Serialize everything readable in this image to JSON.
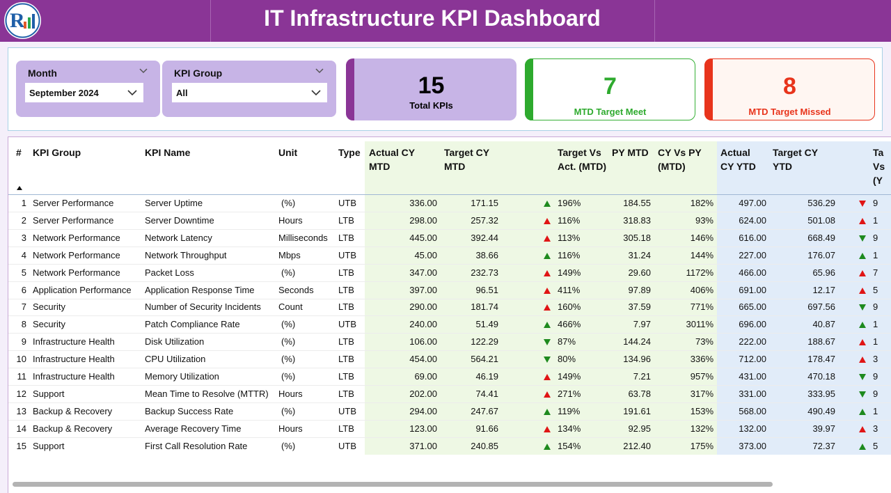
{
  "header": {
    "title": "IT Infrastructure KPI Dashboard",
    "logo_icon": "company-logo-icon"
  },
  "filters": {
    "month": {
      "label": "Month",
      "value": "September 2024"
    },
    "kpi_group": {
      "label": "KPI Group",
      "value": "All"
    }
  },
  "cards": {
    "total": {
      "value": "15",
      "label": "Total KPIs",
      "color": "#8a3596"
    },
    "meet": {
      "value": "7",
      "label": "MTD Target Meet",
      "color": "#2eaa2e"
    },
    "missed": {
      "value": "8",
      "label": "MTD Target Missed",
      "color": "#e8341c"
    }
  },
  "table": {
    "columns": {
      "num": "#",
      "group": "KPI Group",
      "name": "KPI Name",
      "unit": "Unit",
      "type": "Type",
      "actual_mtd": "Actual CY MTD",
      "target_mtd": "Target CY MTD",
      "tva_mtd": "Target Vs Act. (MTD)",
      "py_mtd": "PY MTD",
      "cyvspy_mtd": "CY Vs PY (MTD)",
      "actual_ytd": "Actual CY YTD",
      "target_ytd": "Target CY YTD",
      "tva_ytd": "Ta Vs (Y"
    },
    "rows": [
      {
        "n": "1",
        "group": "Server Performance",
        "name": "Server Uptime",
        "unit": "(%)",
        "type": "UTB",
        "amtd": "336.00",
        "tmtd": "171.15",
        "dir": "up",
        "tva": "196%",
        "py": "184.55",
        "cvp": "182%",
        "aytd": "497.00",
        "tytd": "536.29",
        "ydir": "down",
        "ytva": "9"
      },
      {
        "n": "2",
        "group": "Server Performance",
        "name": "Server Downtime",
        "unit": "Hours",
        "type": "LTB",
        "amtd": "298.00",
        "tmtd": "257.32",
        "dir": "up",
        "tva": "116%",
        "py": "318.83",
        "cvp": "93%",
        "aytd": "624.00",
        "tytd": "501.08",
        "ydir": "up",
        "ytva": "1"
      },
      {
        "n": "3",
        "group": "Network Performance",
        "name": "Network Latency",
        "unit": "Milliseconds",
        "type": "LTB",
        "amtd": "445.00",
        "tmtd": "392.44",
        "dir": "up",
        "tva": "113%",
        "py": "305.18",
        "cvp": "146%",
        "aytd": "616.00",
        "tytd": "668.49",
        "ydir": "down",
        "ytva": "9"
      },
      {
        "n": "4",
        "group": "Network Performance",
        "name": "Network Throughput",
        "unit": "Mbps",
        "type": "UTB",
        "amtd": "45.00",
        "tmtd": "38.66",
        "dir": "up",
        "tva": "116%",
        "py": "31.24",
        "cvp": "144%",
        "aytd": "227.00",
        "tytd": "176.07",
        "ydir": "up",
        "ytva": "1"
      },
      {
        "n": "5",
        "group": "Network Performance",
        "name": "Packet Loss",
        "unit": "(%)",
        "type": "LTB",
        "amtd": "347.00",
        "tmtd": "232.73",
        "dir": "up",
        "tva": "149%",
        "py": "29.60",
        "cvp": "1172%",
        "aytd": "466.00",
        "tytd": "65.96",
        "ydir": "up",
        "ytva": "7"
      },
      {
        "n": "6",
        "group": "Application Performance",
        "name": "Application Response Time",
        "unit": "Seconds",
        "type": "LTB",
        "amtd": "397.00",
        "tmtd": "96.51",
        "dir": "up",
        "tva": "411%",
        "py": "97.89",
        "cvp": "406%",
        "aytd": "691.00",
        "tytd": "12.17",
        "ydir": "up",
        "ytva": "5"
      },
      {
        "n": "7",
        "group": "Security",
        "name": "Number of Security Incidents",
        "unit": "Count",
        "type": "LTB",
        "amtd": "290.00",
        "tmtd": "181.74",
        "dir": "up",
        "tva": "160%",
        "py": "37.59",
        "cvp": "771%",
        "aytd": "665.00",
        "tytd": "697.56",
        "ydir": "down",
        "ytva": "9"
      },
      {
        "n": "8",
        "group": "Security",
        "name": "Patch Compliance Rate",
        "unit": "(%)",
        "type": "UTB",
        "amtd": "240.00",
        "tmtd": "51.49",
        "dir": "up",
        "tva": "466%",
        "py": "7.97",
        "cvp": "3011%",
        "aytd": "696.00",
        "tytd": "40.87",
        "ydir": "up",
        "ytva": "1"
      },
      {
        "n": "9",
        "group": "Infrastructure Health",
        "name": "Disk Utilization",
        "unit": "(%)",
        "type": "LTB",
        "amtd": "106.00",
        "tmtd": "122.29",
        "dir": "down",
        "tva": "87%",
        "py": "144.24",
        "cvp": "73%",
        "aytd": "222.00",
        "tytd": "188.67",
        "ydir": "up",
        "ytva": "1"
      },
      {
        "n": "10",
        "group": "Infrastructure Health",
        "name": "CPU Utilization",
        "unit": "(%)",
        "type": "LTB",
        "amtd": "454.00",
        "tmtd": "564.21",
        "dir": "down",
        "tva": "80%",
        "py": "134.96",
        "cvp": "336%",
        "aytd": "712.00",
        "tytd": "178.47",
        "ydir": "up",
        "ytva": "3"
      },
      {
        "n": "11",
        "group": "Infrastructure Health",
        "name": "Memory Utilization",
        "unit": "(%)",
        "type": "LTB",
        "amtd": "69.00",
        "tmtd": "46.19",
        "dir": "up",
        "tva": "149%",
        "py": "7.21",
        "cvp": "957%",
        "aytd": "431.00",
        "tytd": "470.18",
        "ydir": "down",
        "ytva": "9"
      },
      {
        "n": "12",
        "group": "Support",
        "name": "Mean Time to Resolve (MTTR)",
        "unit": "Hours",
        "type": "LTB",
        "amtd": "202.00",
        "tmtd": "74.41",
        "dir": "up",
        "tva": "271%",
        "py": "63.78",
        "cvp": "317%",
        "aytd": "331.00",
        "tytd": "333.95",
        "ydir": "down",
        "ytva": "9"
      },
      {
        "n": "13",
        "group": "Backup & Recovery",
        "name": "Backup Success Rate",
        "unit": "(%)",
        "type": "UTB",
        "amtd": "294.00",
        "tmtd": "247.67",
        "dir": "up",
        "tva": "119%",
        "py": "191.61",
        "cvp": "153%",
        "aytd": "568.00",
        "tytd": "490.49",
        "ydir": "up",
        "ytva": "1"
      },
      {
        "n": "14",
        "group": "Backup & Recovery",
        "name": "Average Recovery Time",
        "unit": "Hours",
        "type": "LTB",
        "amtd": "123.00",
        "tmtd": "91.66",
        "dir": "up",
        "tva": "134%",
        "py": "92.95",
        "cvp": "132%",
        "aytd": "132.00",
        "tytd": "39.97",
        "ydir": "up",
        "ytva": "3"
      },
      {
        "n": "15",
        "group": "Support",
        "name": "First Call Resolution Rate",
        "unit": "(%)",
        "type": "UTB",
        "amtd": "371.00",
        "tmtd": "240.85",
        "dir": "up",
        "tva": "154%",
        "py": "212.40",
        "cvp": "175%",
        "aytd": "373.00",
        "tytd": "72.37",
        "ydir": "up",
        "ytva": "5"
      }
    ]
  }
}
